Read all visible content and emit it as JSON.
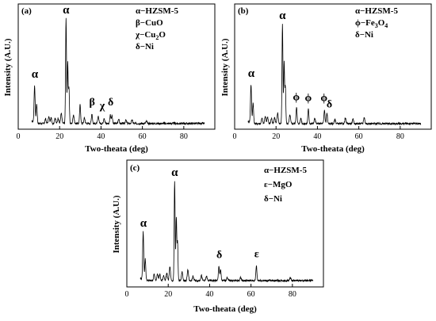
{
  "chart_data": [
    {
      "type": "line",
      "panel": "(a)",
      "xlabel": "Two-theata (deg)",
      "ylabel": "Intensity (A.U.)",
      "xlim": [
        0,
        95
      ],
      "xticks": [
        "0",
        "20",
        "40",
        "60",
        "80"
      ],
      "legend_position": "top-right",
      "legend": [
        {
          "text": "α−HZSM-5"
        },
        {
          "text": "β−CuO"
        },
        {
          "text": "χ−Cu",
          "sub": "2",
          "tail": "O"
        },
        {
          "text": "δ−Ni"
        }
      ],
      "peak_labels": [
        {
          "symbol": "α",
          "x": 8.0,
          "y": 0.42
        },
        {
          "symbol": "α",
          "x": 23.1,
          "y": 1.0
        },
        {
          "symbol": "β",
          "x": 35.7,
          "y": 0.17
        },
        {
          "symbol": "χ",
          "x": 40.6,
          "y": 0.14
        },
        {
          "symbol": "δ",
          "x": 44.7,
          "y": 0.17
        }
      ],
      "peaks": [
        [
          7.9,
          0.33,
          0.25
        ],
        [
          8.9,
          0.17,
          0.25
        ],
        [
          13.2,
          0.04,
          0.3
        ],
        [
          14.8,
          0.06,
          0.3
        ],
        [
          15.9,
          0.05,
          0.3
        ],
        [
          17.8,
          0.05,
          0.3
        ],
        [
          19.3,
          0.05,
          0.3
        ],
        [
          20.8,
          0.09,
          0.3
        ],
        [
          23.1,
          0.95,
          0.22
        ],
        [
          23.9,
          0.55,
          0.22
        ],
        [
          24.5,
          0.32,
          0.22
        ],
        [
          26.7,
          0.08,
          0.3
        ],
        [
          29.9,
          0.17,
          0.25
        ],
        [
          32.0,
          0.05,
          0.3
        ],
        [
          35.6,
          0.09,
          0.25
        ],
        [
          38.7,
          0.06,
          0.3
        ],
        [
          41.5,
          0.05,
          0.3
        ],
        [
          44.5,
          0.08,
          0.25
        ],
        [
          45.3,
          0.07,
          0.25
        ],
        [
          48.5,
          0.04,
          0.3
        ],
        [
          52.0,
          0.03,
          0.3
        ],
        [
          55.0,
          0.03,
          0.3
        ],
        [
          62.0,
          0.02,
          0.3
        ]
      ],
      "baseline": 0.03,
      "x_end": 90
    },
    {
      "type": "line",
      "panel": "(b)",
      "xlabel": "Two-theata (deg)",
      "ylabel": "Intensity (A.U.)",
      "xlim": [
        0,
        95
      ],
      "xticks": [
        "0",
        "20",
        "40",
        "60",
        "80"
      ],
      "legend_position": "top-right",
      "legend": [
        {
          "text": "α−HZSM-5"
        },
        {
          "text": "ϕ−Fe",
          "sub": "3",
          "tail": "O",
          "sub2": "4"
        },
        {
          "text": "δ−Ni"
        }
      ],
      "peak_labels": [
        {
          "symbol": "α",
          "x": 8.0,
          "y": 0.45
        },
        {
          "symbol": "α",
          "x": 23.1,
          "y": 1.0
        },
        {
          "symbol": "ϕ",
          "x": 29.8,
          "y": 0.23
        },
        {
          "symbol": "ϕ",
          "x": 35.6,
          "y": 0.22
        },
        {
          "symbol": "ϕ",
          "x": 43.2,
          "y": 0.22
        },
        {
          "symbol": "δ",
          "x": 45.8,
          "y": 0.16
        }
      ],
      "peaks": [
        [
          7.9,
          0.36,
          0.25
        ],
        [
          8.9,
          0.19,
          0.25
        ],
        [
          13.2,
          0.05,
          0.3
        ],
        [
          14.8,
          0.07,
          0.3
        ],
        [
          15.9,
          0.06,
          0.3
        ],
        [
          17.8,
          0.05,
          0.3
        ],
        [
          19.3,
          0.06,
          0.3
        ],
        [
          20.8,
          0.1,
          0.3
        ],
        [
          23.1,
          0.95,
          0.22
        ],
        [
          23.9,
          0.58,
          0.22
        ],
        [
          24.5,
          0.35,
          0.22
        ],
        [
          26.7,
          0.08,
          0.3
        ],
        [
          29.9,
          0.16,
          0.25
        ],
        [
          32.0,
          0.05,
          0.3
        ],
        [
          35.6,
          0.14,
          0.25
        ],
        [
          38.7,
          0.05,
          0.3
        ],
        [
          43.4,
          0.13,
          0.25
        ],
        [
          44.6,
          0.1,
          0.25
        ],
        [
          48.5,
          0.04,
          0.3
        ],
        [
          53.5,
          0.05,
          0.3
        ],
        [
          57.2,
          0.04,
          0.3
        ],
        [
          62.6,
          0.06,
          0.3
        ]
      ],
      "baseline": 0.03,
      "x_end": 90
    },
    {
      "type": "line",
      "panel": "(c)",
      "xlabel": "Two-theata (deg)",
      "ylabel": "Intensity (A.U.)",
      "xlim": [
        0,
        95
      ],
      "xticks": [
        "0",
        "20",
        "40",
        "60",
        "80"
      ],
      "legend_position": "top-right",
      "legend": [
        {
          "text": "α−HZSM-5"
        },
        {
          "text": "ε−MgO"
        },
        {
          "text": "δ−Ni"
        }
      ],
      "peak_labels": [
        {
          "symbol": "α",
          "x": 8.0,
          "y": 0.52
        },
        {
          "symbol": "α",
          "x": 23.1,
          "y": 1.0
        },
        {
          "symbol": "δ",
          "x": 44.7,
          "y": 0.22
        },
        {
          "symbol": "ε",
          "x": 62.7,
          "y": 0.23
        }
      ],
      "peaks": [
        [
          7.9,
          0.45,
          0.25
        ],
        [
          8.9,
          0.2,
          0.25
        ],
        [
          13.2,
          0.06,
          0.3
        ],
        [
          14.8,
          0.07,
          0.3
        ],
        [
          15.9,
          0.06,
          0.3
        ],
        [
          17.8,
          0.05,
          0.3
        ],
        [
          19.3,
          0.07,
          0.3
        ],
        [
          20.8,
          0.13,
          0.3
        ],
        [
          23.1,
          0.95,
          0.22
        ],
        [
          23.9,
          0.6,
          0.22
        ],
        [
          24.5,
          0.36,
          0.22
        ],
        [
          26.7,
          0.08,
          0.3
        ],
        [
          29.5,
          0.1,
          0.3
        ],
        [
          32.0,
          0.04,
          0.3
        ],
        [
          36.0,
          0.05,
          0.3
        ],
        [
          38.5,
          0.04,
          0.3
        ],
        [
          44.5,
          0.14,
          0.25
        ],
        [
          45.3,
          0.1,
          0.25
        ],
        [
          48.5,
          0.03,
          0.3
        ],
        [
          55.0,
          0.03,
          0.3
        ],
        [
          62.6,
          0.14,
          0.25
        ],
        [
          79.0,
          0.03,
          0.3
        ]
      ],
      "baseline": 0.03,
      "x_end": 90
    }
  ]
}
